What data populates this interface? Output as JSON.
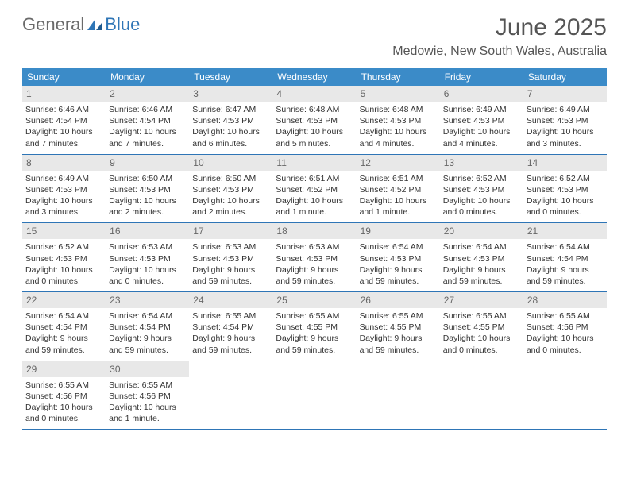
{
  "logo": {
    "text_general": "General",
    "text_blue": "Blue"
  },
  "title": "June 2025",
  "location": "Medowie, New South Wales, Australia",
  "colors": {
    "header_bg": "#3b8bc8",
    "daynum_bg": "#e8e8e8",
    "border": "#2e75b6",
    "text": "#333333",
    "title_text": "#555555"
  },
  "daynames": [
    "Sunday",
    "Monday",
    "Tuesday",
    "Wednesday",
    "Thursday",
    "Friday",
    "Saturday"
  ],
  "weeks": [
    [
      {
        "n": "1",
        "sr": "Sunrise: 6:46 AM",
        "ss": "Sunset: 4:54 PM",
        "d1": "Daylight: 10 hours",
        "d2": "and 7 minutes."
      },
      {
        "n": "2",
        "sr": "Sunrise: 6:46 AM",
        "ss": "Sunset: 4:54 PM",
        "d1": "Daylight: 10 hours",
        "d2": "and 7 minutes."
      },
      {
        "n": "3",
        "sr": "Sunrise: 6:47 AM",
        "ss": "Sunset: 4:53 PM",
        "d1": "Daylight: 10 hours",
        "d2": "and 6 minutes."
      },
      {
        "n": "4",
        "sr": "Sunrise: 6:48 AM",
        "ss": "Sunset: 4:53 PM",
        "d1": "Daylight: 10 hours",
        "d2": "and 5 minutes."
      },
      {
        "n": "5",
        "sr": "Sunrise: 6:48 AM",
        "ss": "Sunset: 4:53 PM",
        "d1": "Daylight: 10 hours",
        "d2": "and 4 minutes."
      },
      {
        "n": "6",
        "sr": "Sunrise: 6:49 AM",
        "ss": "Sunset: 4:53 PM",
        "d1": "Daylight: 10 hours",
        "d2": "and 4 minutes."
      },
      {
        "n": "7",
        "sr": "Sunrise: 6:49 AM",
        "ss": "Sunset: 4:53 PM",
        "d1": "Daylight: 10 hours",
        "d2": "and 3 minutes."
      }
    ],
    [
      {
        "n": "8",
        "sr": "Sunrise: 6:49 AM",
        "ss": "Sunset: 4:53 PM",
        "d1": "Daylight: 10 hours",
        "d2": "and 3 minutes."
      },
      {
        "n": "9",
        "sr": "Sunrise: 6:50 AM",
        "ss": "Sunset: 4:53 PM",
        "d1": "Daylight: 10 hours",
        "d2": "and 2 minutes."
      },
      {
        "n": "10",
        "sr": "Sunrise: 6:50 AM",
        "ss": "Sunset: 4:53 PM",
        "d1": "Daylight: 10 hours",
        "d2": "and 2 minutes."
      },
      {
        "n": "11",
        "sr": "Sunrise: 6:51 AM",
        "ss": "Sunset: 4:52 PM",
        "d1": "Daylight: 10 hours",
        "d2": "and 1 minute."
      },
      {
        "n": "12",
        "sr": "Sunrise: 6:51 AM",
        "ss": "Sunset: 4:52 PM",
        "d1": "Daylight: 10 hours",
        "d2": "and 1 minute."
      },
      {
        "n": "13",
        "sr": "Sunrise: 6:52 AM",
        "ss": "Sunset: 4:53 PM",
        "d1": "Daylight: 10 hours",
        "d2": "and 0 minutes."
      },
      {
        "n": "14",
        "sr": "Sunrise: 6:52 AM",
        "ss": "Sunset: 4:53 PM",
        "d1": "Daylight: 10 hours",
        "d2": "and 0 minutes."
      }
    ],
    [
      {
        "n": "15",
        "sr": "Sunrise: 6:52 AM",
        "ss": "Sunset: 4:53 PM",
        "d1": "Daylight: 10 hours",
        "d2": "and 0 minutes."
      },
      {
        "n": "16",
        "sr": "Sunrise: 6:53 AM",
        "ss": "Sunset: 4:53 PM",
        "d1": "Daylight: 10 hours",
        "d2": "and 0 minutes."
      },
      {
        "n": "17",
        "sr": "Sunrise: 6:53 AM",
        "ss": "Sunset: 4:53 PM",
        "d1": "Daylight: 9 hours",
        "d2": "and 59 minutes."
      },
      {
        "n": "18",
        "sr": "Sunrise: 6:53 AM",
        "ss": "Sunset: 4:53 PM",
        "d1": "Daylight: 9 hours",
        "d2": "and 59 minutes."
      },
      {
        "n": "19",
        "sr": "Sunrise: 6:54 AM",
        "ss": "Sunset: 4:53 PM",
        "d1": "Daylight: 9 hours",
        "d2": "and 59 minutes."
      },
      {
        "n": "20",
        "sr": "Sunrise: 6:54 AM",
        "ss": "Sunset: 4:53 PM",
        "d1": "Daylight: 9 hours",
        "d2": "and 59 minutes."
      },
      {
        "n": "21",
        "sr": "Sunrise: 6:54 AM",
        "ss": "Sunset: 4:54 PM",
        "d1": "Daylight: 9 hours",
        "d2": "and 59 minutes."
      }
    ],
    [
      {
        "n": "22",
        "sr": "Sunrise: 6:54 AM",
        "ss": "Sunset: 4:54 PM",
        "d1": "Daylight: 9 hours",
        "d2": "and 59 minutes."
      },
      {
        "n": "23",
        "sr": "Sunrise: 6:54 AM",
        "ss": "Sunset: 4:54 PM",
        "d1": "Daylight: 9 hours",
        "d2": "and 59 minutes."
      },
      {
        "n": "24",
        "sr": "Sunrise: 6:55 AM",
        "ss": "Sunset: 4:54 PM",
        "d1": "Daylight: 9 hours",
        "d2": "and 59 minutes."
      },
      {
        "n": "25",
        "sr": "Sunrise: 6:55 AM",
        "ss": "Sunset: 4:55 PM",
        "d1": "Daylight: 9 hours",
        "d2": "and 59 minutes."
      },
      {
        "n": "26",
        "sr": "Sunrise: 6:55 AM",
        "ss": "Sunset: 4:55 PM",
        "d1": "Daylight: 9 hours",
        "d2": "and 59 minutes."
      },
      {
        "n": "27",
        "sr": "Sunrise: 6:55 AM",
        "ss": "Sunset: 4:55 PM",
        "d1": "Daylight: 10 hours",
        "d2": "and 0 minutes."
      },
      {
        "n": "28",
        "sr": "Sunrise: 6:55 AM",
        "ss": "Sunset: 4:56 PM",
        "d1": "Daylight: 10 hours",
        "d2": "and 0 minutes."
      }
    ],
    [
      {
        "n": "29",
        "sr": "Sunrise: 6:55 AM",
        "ss": "Sunset: 4:56 PM",
        "d1": "Daylight: 10 hours",
        "d2": "and 0 minutes."
      },
      {
        "n": "30",
        "sr": "Sunrise: 6:55 AM",
        "ss": "Sunset: 4:56 PM",
        "d1": "Daylight: 10 hours",
        "d2": "and 1 minute."
      },
      {
        "empty": true
      },
      {
        "empty": true
      },
      {
        "empty": true
      },
      {
        "empty": true
      },
      {
        "empty": true
      }
    ]
  ]
}
